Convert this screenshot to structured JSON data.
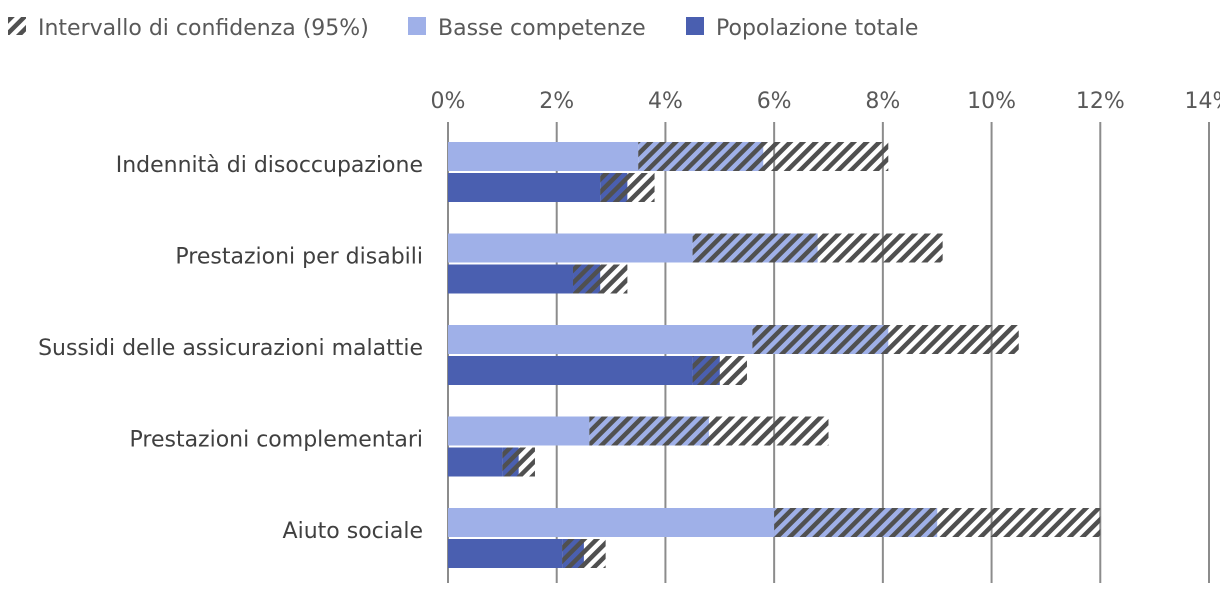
{
  "chart_data": {
    "type": "bar",
    "orientation": "horizontal",
    "title": "",
    "xlabel": "",
    "ylabel": "",
    "xlim": [
      0,
      14
    ],
    "x_ticks": [
      0,
      2,
      4,
      6,
      8,
      10,
      12,
      14
    ],
    "x_tick_labels": [
      "0%",
      "2%",
      "4%",
      "6%",
      "8%",
      "10%",
      "12%",
      "14%"
    ],
    "grid": true,
    "legend_position": "top",
    "legend": [
      {
        "name": "Intervallo di confidenza (95%)",
        "style": "hatched"
      },
      {
        "name": "Basse competenze",
        "color": "#9fb0e8"
      },
      {
        "name": "Popolazione totale",
        "color": "#4a5fb0"
      }
    ],
    "categories": [
      "Indennità di disoccupazione",
      "Prestazioni per disabili",
      "Sussidi delle assicurazioni malattie",
      "Prestazioni complementari",
      "Aiuto sociale"
    ],
    "series": [
      {
        "name": "Basse competenze",
        "color": "#9fb0e8",
        "values": [
          5.8,
          6.8,
          8.1,
          4.8,
          9.0
        ],
        "ci_low": [
          3.5,
          4.5,
          5.6,
          2.6,
          6.0
        ],
        "ci_high": [
          8.1,
          9.1,
          10.5,
          7.0,
          12.0
        ]
      },
      {
        "name": "Popolazione totale",
        "color": "#4a5fb0",
        "values": [
          3.3,
          2.8,
          5.0,
          1.3,
          2.5
        ],
        "ci_low": [
          2.8,
          2.3,
          4.5,
          1.0,
          2.1
        ],
        "ci_high": [
          3.8,
          3.3,
          5.5,
          1.6,
          2.9
        ]
      }
    ]
  }
}
